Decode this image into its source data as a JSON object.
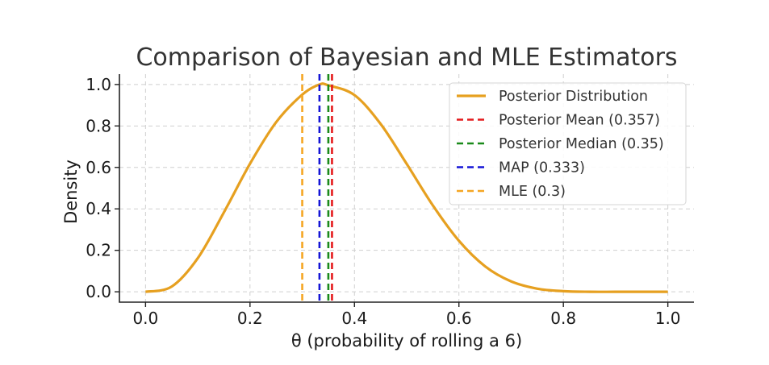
{
  "chart_data": {
    "type": "line",
    "title": "Comparison of Bayesian and MLE Estimators",
    "xlabel": "θ (probability of rolling a 6)",
    "ylabel": "Density",
    "xlim": [
      -0.05,
      1.05
    ],
    "ylim": [
      -0.05,
      1.05
    ],
    "x_ticks": [
      "0.0",
      "0.2",
      "0.4",
      "0.6",
      "0.8",
      "1.0"
    ],
    "y_ticks": [
      "0.0",
      "0.2",
      "0.4",
      "0.6",
      "0.8",
      "1.0"
    ],
    "grid": true,
    "legend_position": "upper-right",
    "series": [
      {
        "name": "Posterior Distribution",
        "color": "#E6A020",
        "style": "solid",
        "x": [
          0.0,
          0.05,
          0.1,
          0.15,
          0.2,
          0.25,
          0.3,
          0.333,
          0.35,
          0.4,
          0.45,
          0.5,
          0.55,
          0.6,
          0.65,
          0.7,
          0.75,
          0.8,
          0.85,
          0.9,
          0.95,
          1.0
        ],
        "y": [
          0.0,
          0.025,
          0.162,
          0.383,
          0.618,
          0.818,
          0.951,
          1.0,
          0.996,
          0.949,
          0.81,
          0.617,
          0.417,
          0.246,
          0.123,
          0.05,
          0.015,
          0.003,
          0.0,
          0.0,
          0.0,
          0.0
        ]
      }
    ],
    "vlines": [
      {
        "name": "Posterior Mean (0.357)",
        "x": 0.357,
        "color": "#E41A1C",
        "style": "dashed"
      },
      {
        "name": "Posterior Median (0.35)",
        "x": 0.35,
        "color": "#1A8A1A",
        "style": "dashed"
      },
      {
        "name": "MAP (0.333)",
        "x": 0.333,
        "color": "#1515D6",
        "style": "dashed"
      },
      {
        "name": "MLE (0.3)",
        "x": 0.3,
        "color": "#F5A623",
        "style": "dashed"
      }
    ]
  }
}
